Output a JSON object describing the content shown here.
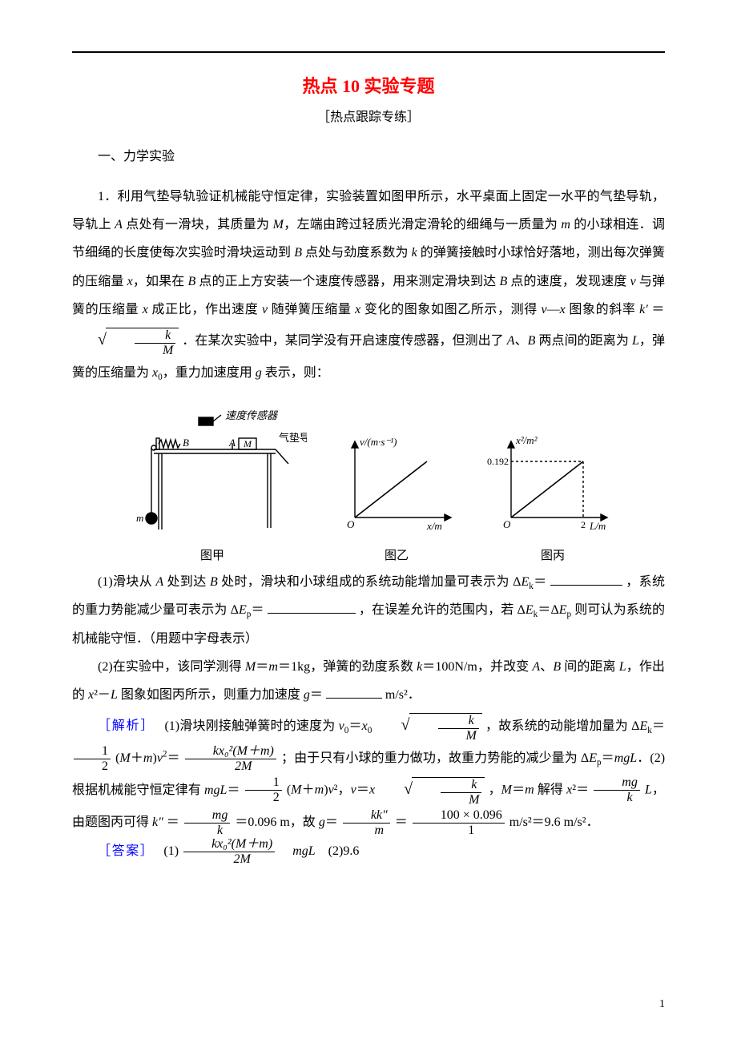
{
  "title": "热点 10 实验专题",
  "subtitle": "［热点跟踪专练］",
  "section": "一、力学实验",
  "problem_intro": "1．利用气垫导轨验证机械能守恒定律，实验装置如图甲所示，水平桌面上固定一水平的气垫导轨，导轨上 <i>A</i> 点处有一滑块，其质量为 <i>M</i>，左端由跨过轻质光滑定滑轮的细绳与一质量为 <i>m</i> 的小球相连．调节细绳的长度使每次实验时滑块运动到 <i>B</i> 点处与劲度系数为 <i>k</i> 的弹簧接触时小球恰好落地，测出每次弹簧的压缩量 <i>x</i>，如果在 <i>B</i> 点的正上方安装一个速度传感器，用来测定滑块到达 <i>B</i> 点的速度，发现速度 <i>v</i> 与弹簧的压缩量 <i>x</i> 成正比，作出速度 <i>v</i> 随弹簧压缩量 <i>x</i> 变化的图象如图乙所示，测得 <i>v</i>—<i>x</i> 图象的斜率 <i>k′</i> ＝ ",
  "problem_intro_after": "．在某次实验中，某同学没有开启速度传感器，但测出了 <i>A</i>、<i>B</i> 两点间的距离为 <i>L</i>，弹簧的压缩量为 <i>x</i><sub>0</sub>，重力加速度用 <i>g</i> 表示，则：",
  "fig1_labels": {
    "sensor": "速度传感器",
    "track": "气垫导轨",
    "B": "B",
    "A": "A",
    "M": "M",
    "m": "m",
    "caption": "图甲"
  },
  "fig2_labels": {
    "ylabel": "v/(m·s⁻¹)",
    "xlabel": "x/m",
    "O": "O",
    "caption": "图乙"
  },
  "fig3_labels": {
    "ylabel": "x²/m²",
    "yval": "0.192",
    "xval": "2",
    "xlabel": "L/m",
    "O": "O",
    "caption": "图丙"
  },
  "q1_before": "(1)滑块从 <i>A</i> 处到达 <i>B</i> 处时，滑块和小球组成的系统动能增加量可表示为 Δ<i>E</i><sub>k</sub>＝",
  "q1_mid": "，系统的重力势能减少量可表示为 Δ<i>E</i><sub>p</sub>＝",
  "q1_after": "，在误差允许的范围内，若 Δ<i>E</i><sub>k</sub>＝Δ<i>E</i><sub>p</sub> 则可认为系统的机械能守恒．（用题中字母表示）",
  "q2_before": "(2)在实验中，该同学测得 <i>M</i>＝<i>m</i>＝1kg，弹簧的劲度系数 <i>k</i>＝100N/m，并改变 <i>A</i>、<i>B</i> 间的距离 <i>L</i>，作出的 <i>x</i>²－<i>L</i> 图象如图丙所示，则重力加速度 <i>g</i>＝",
  "q2_after": "m/s²．",
  "sol_label": "［解析］",
  "sol_p1_a": "(1)滑块刚接触弹簧时的速度为 <i>v</i><sub>0</sub>＝<i>x</i><sub>0</sub>",
  "sol_p1_b": "，故系统的动能增加量为 Δ<i>E</i><sub>k</sub>＝",
  "sol_p1_c": "(<i>M</i>＋<i>m</i>)<i>v</i><sup>2</sup>＝",
  "sol_p1_d": "；由于只有小球的重力做功，故重力势能的减少量为 Δ<i>E</i><sub>p</sub>＝<i>mgL</i>．(2)根据机械能守恒定律有 <i>mgL</i>＝",
  "sol_p1_e": "(<i>M</i>＋<i>m</i>)<i>v</i>²，<i>v</i>＝<i>x</i>",
  "sol_p1_f": "，<i>M</i>＝<i>m</i> 解得 <i>x</i>²＝",
  "sol_p1_g": "<i>L</i>，由题图丙可得 <i>k″</i> ＝",
  "sol_p1_h": "＝0.096 m，故 <i>g</i>＝",
  "sol_p1_i": "＝",
  "sol_p1_j": " m/s²＝9.6 m/s²．",
  "ans_label": "［答案］",
  "ans_text": "(1)",
  "ans_text2": "　<i>mgL</i>　(2)9.6",
  "page_num": "1",
  "frac": {
    "k_over_M_top": "k",
    "k_over_M_bot": "M",
    "half_top": "1",
    "half_bot": "2",
    "kx02Mm_top": "kx₀²(M＋m)",
    "kx02Mm_bot": "2M",
    "mg_over_k_top": "mg",
    "mg_over_k_bot": "k",
    "kk_over_m_top": "kk″",
    "kk_over_m_bot": "m",
    "hundred_top": "100 × 0.096",
    "hundred_bot": "1"
  },
  "colors": {
    "title": "#ff0000",
    "label": "#0000ff",
    "text": "#000000",
    "bg": "#ffffff"
  },
  "fig_style": {
    "line_color": "#000000",
    "line_width": 1.2,
    "axis_arrow": 5
  }
}
